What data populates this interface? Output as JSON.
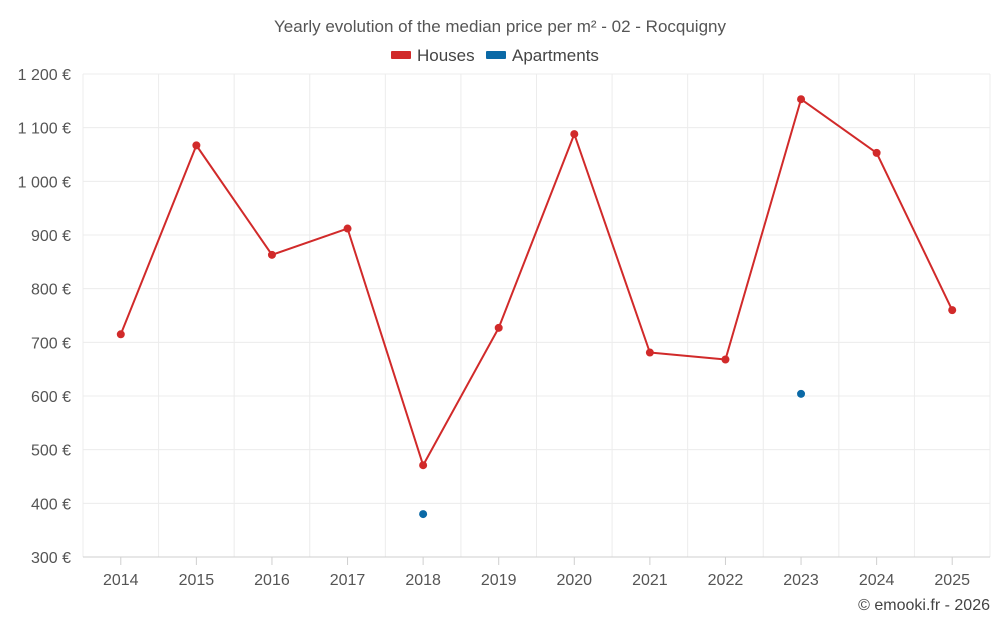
{
  "colors": {
    "houses": "#d12a2a",
    "apartments": "#0a69a6",
    "grid": "#ececec",
    "axis": "#cfcfcf",
    "text": "#555555"
  },
  "credit": "© emooki.fr - 2026",
  "chart_data": {
    "type": "line",
    "title": "Yearly evolution of the median price per m² - 02 - Rocquigny",
    "xlabel": "",
    "ylabel": "",
    "legend_position": "top-center",
    "grid": true,
    "ylim": [
      300,
      1200
    ],
    "y_ticks": [
      300,
      400,
      500,
      600,
      700,
      800,
      900,
      1000,
      1100,
      1200
    ],
    "y_tick_labels": [
      "300 €",
      "400 €",
      "500 €",
      "600 €",
      "700 €",
      "800 €",
      "900 €",
      "1 000 €",
      "1 100 €",
      "1 200 €"
    ],
    "categories": [
      "2014",
      "2015",
      "2016",
      "2017",
      "2018",
      "2019",
      "2020",
      "2021",
      "2022",
      "2023",
      "2024",
      "2025"
    ],
    "series": [
      {
        "name": "Houses",
        "color": "#d12a2a",
        "values": [
          715,
          1067,
          863,
          912,
          471,
          727,
          1088,
          681,
          668,
          1153,
          1053,
          760
        ]
      },
      {
        "name": "Apartments",
        "color": "#0a69a6",
        "values": [
          null,
          null,
          null,
          null,
          380,
          null,
          null,
          null,
          null,
          604,
          null,
          null
        ]
      }
    ]
  }
}
